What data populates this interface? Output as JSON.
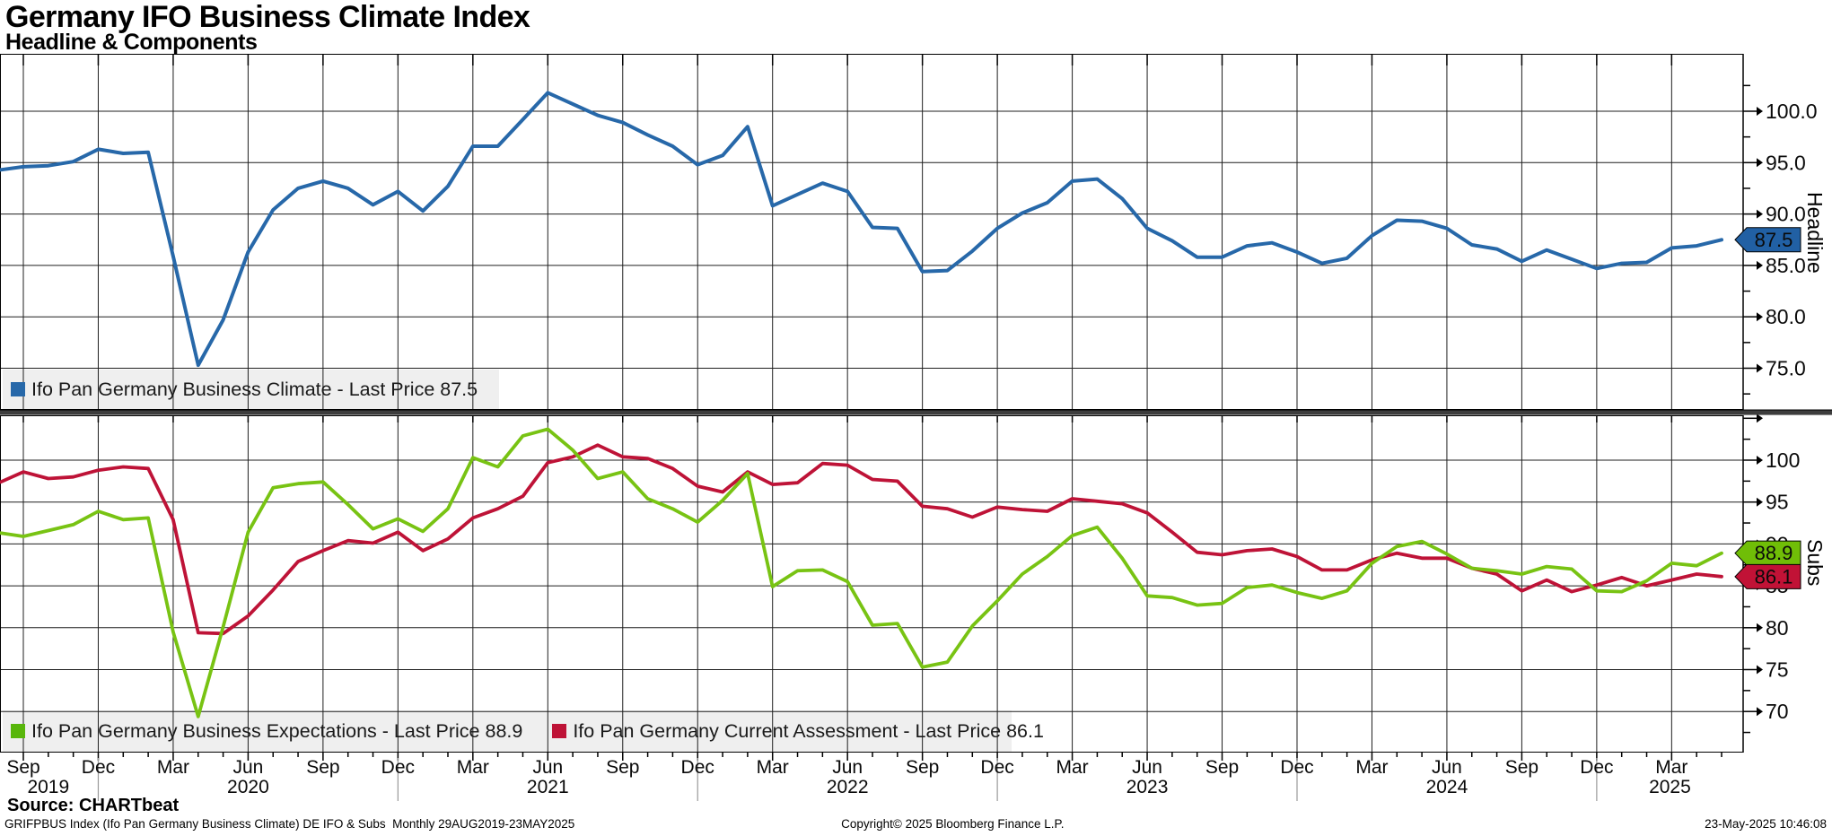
{
  "header": {
    "title": "Germany IFO Business Climate Index",
    "subtitle": "Headline & Components"
  },
  "top_panel": {
    "axis_title": "Headline",
    "legend_label": "Ifo Pan Germany Business Climate - Last Price 87.5",
    "last_price": "87.5",
    "y_tick_labels": [
      "100.0",
      "95.0",
      "90.0",
      "85.0",
      "80.0",
      "75.0"
    ]
  },
  "bottom_panel": {
    "axis_title": "Subs",
    "legend_expectations": "Ifo Pan Germany Business Expectations - Last Price 88.9",
    "legend_current": "Ifo Pan Germany Current Assessment - Last Price 86.1",
    "last_price_expectations": "88.9",
    "last_price_current": "86.1",
    "y_tick_labels": [
      "100",
      "95",
      "90",
      "85",
      "80",
      "75",
      "70"
    ]
  },
  "x_axis": {
    "month_labels": [
      "Sep",
      "Dec",
      "Mar",
      "Jun",
      "Sep",
      "Dec",
      "Mar",
      "Jun",
      "Sep",
      "Dec",
      "Mar",
      "Jun",
      "Sep",
      "Dec",
      "Mar",
      "Jun",
      "Sep",
      "Dec",
      "Mar",
      "Jun",
      "Sep",
      "Dec",
      "Mar"
    ],
    "year_labels": [
      "2019",
      "2020",
      "2021",
      "2022",
      "2023",
      "2024",
      "2025"
    ]
  },
  "footer": {
    "source": "Source: CHARTbeat",
    "description": "GRIFPBUS Index (Ifo Pan Germany Business Climate) DE IFO & Subs  Monthly 29AUG2019-23MAY2025",
    "copyright": "Copyright© 2025 Bloomberg Finance L.P.",
    "timestamp": "23-May-2025 10:46:08"
  },
  "colors": {
    "headline_line": "#2768A9",
    "expectations_line": "#78C313",
    "expectations_marker": "#58B60B",
    "current_line": "#BE1337",
    "badge_headline": "#2160A4",
    "badge_expectations": "#70BE07",
    "badge_current": "#C11236",
    "separator": "#3D3D3D",
    "legend_bg": "#EFEFEF",
    "grid": "#1F1F1F",
    "year_separator": "#9A9A9A"
  },
  "chart_data": [
    {
      "type": "line",
      "title": "Headline",
      "x_start": "2019-08",
      "x_end": "2025-05",
      "frequency": "monthly",
      "ylim": [
        71.0,
        105.6
      ],
      "yticks": [
        75,
        80,
        85,
        90,
        95,
        100
      ],
      "grid": true,
      "legend_position": "bottom-left",
      "series": [
        {
          "name": "Ifo Pan Germany Business Climate",
          "last_price": 87.5,
          "color": "#2768A9",
          "values": [
            94.3,
            94.6,
            94.7,
            95.1,
            96.3,
            95.9,
            96.0,
            85.9,
            75.3,
            79.7,
            86.3,
            90.4,
            92.5,
            93.2,
            92.5,
            90.9,
            92.2,
            90.3,
            92.7,
            96.6,
            96.6,
            99.2,
            101.8,
            100.7,
            99.6,
            98.9,
            97.7,
            96.6,
            94.8,
            95.7,
            98.5,
            90.8,
            91.9,
            93.0,
            92.2,
            88.7,
            88.6,
            84.4,
            84.5,
            86.4,
            88.6,
            90.1,
            91.1,
            93.2,
            93.4,
            91.5,
            88.6,
            87.4,
            85.8,
            85.8,
            86.9,
            87.2,
            86.3,
            85.2,
            85.7,
            87.9,
            89.4,
            89.3,
            88.6,
            87.0,
            86.6,
            85.4,
            86.5,
            85.6,
            84.7,
            85.2,
            85.3,
            86.7,
            86.9,
            87.5
          ]
        }
      ]
    },
    {
      "type": "line",
      "title": "Subs",
      "x_start": "2019-08",
      "x_end": "2025-05",
      "frequency": "monthly",
      "ylim": [
        65.0,
        105.3
      ],
      "yticks": [
        70,
        75,
        80,
        85,
        90,
        95,
        100
      ],
      "grid": true,
      "legend_position": "bottom-left",
      "series": [
        {
          "name": "Ifo Pan Germany Business Expectations",
          "last_price": 88.9,
          "color": "#78C313",
          "values": [
            91.3,
            90.9,
            91.6,
            92.3,
            93.9,
            92.9,
            93.1,
            79.5,
            69.4,
            80.1,
            91.4,
            96.7,
            97.2,
            97.4,
            94.7,
            91.8,
            93.0,
            91.5,
            94.2,
            100.3,
            99.2,
            102.9,
            103.7,
            101.2,
            97.8,
            98.6,
            95.4,
            94.2,
            92.6,
            95.2,
            98.4,
            84.9,
            86.8,
            86.9,
            85.5,
            80.3,
            80.5,
            75.3,
            75.9,
            80.2,
            83.2,
            86.4,
            88.5,
            91.0,
            92.0,
            88.3,
            83.8,
            83.6,
            82.7,
            82.9,
            84.8,
            85.1,
            84.2,
            83.5,
            84.4,
            87.7,
            89.7,
            90.3,
            88.8,
            87.1,
            86.8,
            86.4,
            87.3,
            87.0,
            84.4,
            84.3,
            85.6,
            87.7,
            87.4,
            88.9
          ]
        },
        {
          "name": "Ifo Pan Germany Current Assessment",
          "last_price": 86.1,
          "color": "#BE1337",
          "values": [
            97.4,
            98.6,
            97.8,
            98.0,
            98.8,
            99.2,
            99.0,
            92.9,
            79.4,
            79.3,
            81.4,
            84.5,
            87.9,
            89.2,
            90.4,
            90.1,
            91.4,
            89.2,
            90.6,
            93.1,
            94.2,
            95.7,
            99.7,
            100.4,
            101.8,
            100.4,
            100.2,
            99.0,
            96.9,
            96.2,
            98.6,
            97.1,
            97.3,
            99.6,
            99.4,
            97.7,
            97.5,
            94.5,
            94.2,
            93.2,
            94.4,
            94.1,
            93.9,
            95.4,
            95.1,
            94.8,
            93.7,
            91.4,
            89.0,
            88.7,
            89.2,
            89.4,
            88.5,
            86.9,
            86.9,
            88.1,
            88.9,
            88.3,
            88.3,
            87.1,
            86.4,
            84.4,
            85.7,
            84.3,
            85.1,
            86.0,
            85.0,
            85.7,
            86.4,
            86.1
          ]
        }
      ]
    }
  ]
}
